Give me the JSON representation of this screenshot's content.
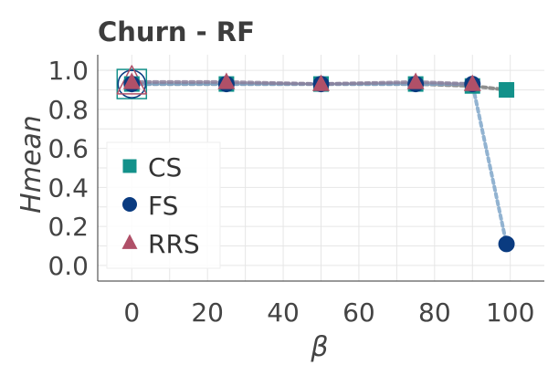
{
  "chart_data": {
    "type": "line",
    "title": "Churn - RF",
    "xlabel": "β",
    "ylabel": "Hmean",
    "x": [
      0,
      25,
      50,
      75,
      90,
      99
    ],
    "xlim": [
      -9,
      109
    ],
    "ylim": [
      -0.08,
      1.08
    ],
    "xticks": [
      "0",
      "20",
      "40",
      "60",
      "80",
      "100"
    ],
    "yticks": [
      "0.0",
      "0.2",
      "0.4",
      "0.6",
      "0.8",
      "1.0"
    ],
    "grid": true,
    "legend_position": "left",
    "series": [
      {
        "name": "CS",
        "marker": "square",
        "color": "#13918a",
        "line_color": "#7a7a7a",
        "values": [
          0.93,
          0.93,
          0.93,
          0.93,
          0.92,
          0.9
        ]
      },
      {
        "name": "FS",
        "marker": "circle",
        "color": "#0a3b80",
        "line_color": "#7fa6c9",
        "values": [
          0.93,
          0.93,
          0.93,
          0.93,
          0.93,
          0.11
        ]
      },
      {
        "name": "RRS",
        "marker": "triangle",
        "color": "#b05068",
        "line_color": "#8b7f9a",
        "values": [
          0.94,
          0.94,
          0.93,
          0.94,
          0.93,
          null
        ]
      }
    ],
    "highlight_x": 0
  }
}
